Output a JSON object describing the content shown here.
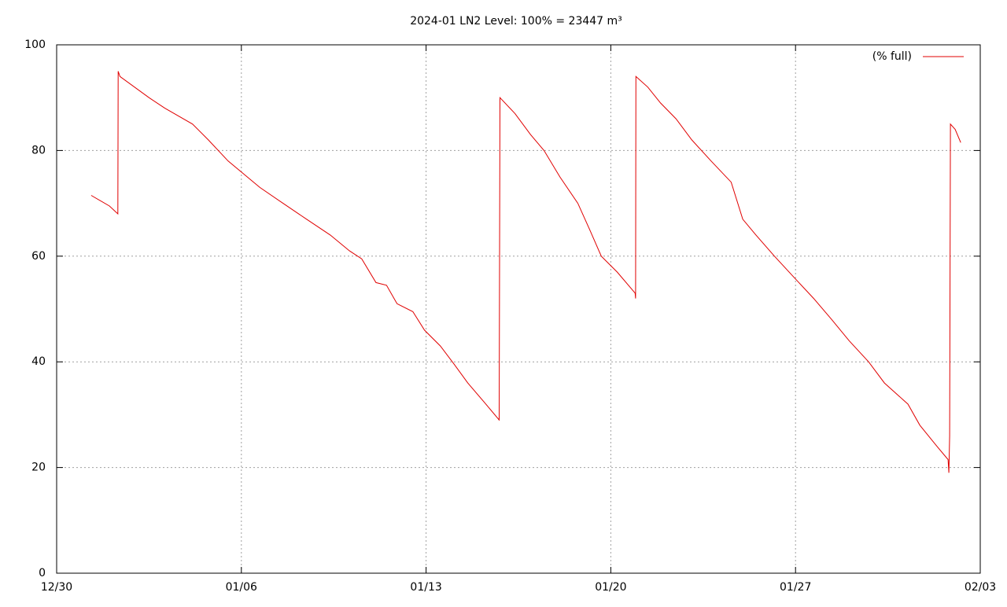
{
  "chart_data": {
    "type": "line",
    "title": "2024-01 LN2 Level: 100% = 23447 m³",
    "x": [
      1.31,
      2.0,
      2.32,
      2.33,
      2.4,
      3.5,
      4.1,
      5.15,
      5.75,
      6.5,
      7.1,
      7.7,
      8.58,
      9.47,
      10.37,
      11.1,
      11.56,
      12.1,
      12.5,
      12.9,
      13.5,
      13.94,
      14.54,
      15.07,
      15.58,
      16.18,
      16.77,
      16.8,
      17.37,
      17.96,
      18.47,
      19.07,
      19.75,
      20.2,
      20.64,
      21.24,
      21.92,
      21.94,
      21.95,
      22.4,
      22.88,
      23.47,
      24.07,
      24.8,
      25.56,
      26.0,
      26.5,
      27.2,
      27.94,
      28.69,
      29.37,
      30.03,
      30.77,
      31.37,
      32.26,
      32.71,
      33.36,
      33.78,
      33.81,
      33.84,
      33.87,
      34.05,
      34.26
    ],
    "series": [
      {
        "name": "(% full)",
        "color": "#e00000",
        "values": [
          71.5,
          69.5,
          68,
          95,
          94,
          90,
          88,
          85,
          82,
          78,
          75.5,
          73,
          70,
          67,
          64,
          61,
          59.5,
          55,
          54.5,
          51,
          49.5,
          46,
          43,
          39.5,
          36,
          32.5,
          29,
          90,
          87,
          83,
          80,
          75,
          70,
          65,
          60,
          57,
          53,
          52,
          94,
          92,
          89,
          86,
          82,
          78,
          74,
          67,
          64,
          60,
          56,
          52,
          48,
          44,
          40,
          36,
          32,
          28,
          24,
          21.5,
          19,
          26,
          85,
          84,
          81.5
        ]
      }
    ],
    "xlim": [
      0,
      35
    ],
    "ylim": [
      0,
      100
    ],
    "xticks": [
      {
        "value": 0,
        "label": "12/30"
      },
      {
        "value": 7,
        "label": "01/06"
      },
      {
        "value": 14,
        "label": "01/13"
      },
      {
        "value": 21,
        "label": "01/20"
      },
      {
        "value": 28,
        "label": "01/27"
      },
      {
        "value": 35,
        "label": "02/03"
      }
    ],
    "yticks": [
      0,
      20,
      40,
      60,
      80,
      100
    ],
    "grid": true,
    "legend": "top-right"
  }
}
